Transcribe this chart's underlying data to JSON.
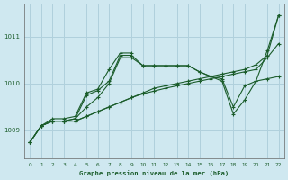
{
  "title": "Graphe pression niveau de la mer (hPa)",
  "bg_color": "#cfe8f0",
  "grid_color": "#b0d0dc",
  "line_color": "#1a5c2a",
  "xlim": [
    -0.5,
    22.5
  ],
  "ylim": [
    1008.4,
    1011.7
  ],
  "yticks": [
    1009,
    1010,
    1011
  ],
  "xticks": [
    0,
    1,
    2,
    3,
    4,
    5,
    6,
    7,
    8,
    9,
    10,
    11,
    12,
    13,
    14,
    15,
    16,
    17,
    18,
    19,
    20,
    21,
    22
  ],
  "series": [
    {
      "x": [
        0,
        1,
        2,
        3,
        4,
        5,
        6,
        7,
        8,
        9,
        10,
        11,
        12,
        13,
        14,
        15,
        16,
        17,
        18,
        19,
        20,
        21,
        22
      ],
      "y": [
        1008.75,
        1009.1,
        1009.2,
        1009.2,
        1009.2,
        1009.3,
        1009.4,
        1009.5,
        1009.6,
        1009.7,
        1009.8,
        1009.9,
        1009.95,
        1010.0,
        1010.05,
        1010.1,
        1010.15,
        1010.2,
        1010.25,
        1010.3,
        1010.4,
        1010.6,
        1011.45
      ]
    },
    {
      "x": [
        0,
        1,
        2,
        3,
        4,
        5,
        6,
        7,
        8,
        9,
        10,
        11,
        12,
        13,
        14,
        15,
        16,
        17,
        18,
        19,
        20,
        21,
        22
      ],
      "y": [
        1008.75,
        1009.1,
        1009.2,
        1009.2,
        1009.2,
        1009.3,
        1009.4,
        1009.5,
        1009.6,
        1009.7,
        1009.78,
        1009.84,
        1009.9,
        1009.95,
        1010.0,
        1010.05,
        1010.1,
        1010.15,
        1010.2,
        1010.25,
        1010.3,
        1010.55,
        1010.85
      ]
    },
    {
      "x": [
        0,
        1,
        2,
        3,
        4,
        5,
        6,
        7,
        8,
        9,
        10,
        11,
        12,
        13,
        14,
        15,
        16,
        17,
        18,
        19,
        20,
        21,
        22
      ],
      "y": [
        1008.75,
        1009.1,
        1009.2,
        1009.2,
        1009.25,
        1009.5,
        1009.7,
        1010.0,
        1010.55,
        1010.55,
        1010.38,
        1010.38,
        1010.38,
        1010.38,
        1010.38,
        1010.25,
        1010.15,
        1010.05,
        1009.35,
        1009.65,
        1010.05,
        1010.1,
        1010.15
      ]
    },
    {
      "x": [
        1,
        2,
        3,
        4,
        5,
        6,
        7,
        8,
        9,
        10,
        11,
        12,
        13,
        14,
        15,
        16,
        17,
        18,
        19,
        20,
        21,
        22
      ],
      "y": [
        1009.1,
        1009.2,
        1009.2,
        1009.25,
        1009.75,
        1009.85,
        1010.05,
        1010.6,
        1010.6,
        1010.38,
        1010.38,
        1010.38,
        1010.38,
        1010.38,
        1010.25,
        1010.15,
        1010.1,
        1009.5,
        1009.95,
        1010.05,
        1010.7,
        1011.45
      ]
    },
    {
      "x": [
        0,
        1,
        2,
        3,
        4,
        5,
        6,
        7,
        8,
        9
      ],
      "y": [
        1008.75,
        1009.1,
        1009.25,
        1009.25,
        1009.3,
        1009.8,
        1009.88,
        1010.3,
        1010.65,
        1010.65
      ]
    }
  ]
}
